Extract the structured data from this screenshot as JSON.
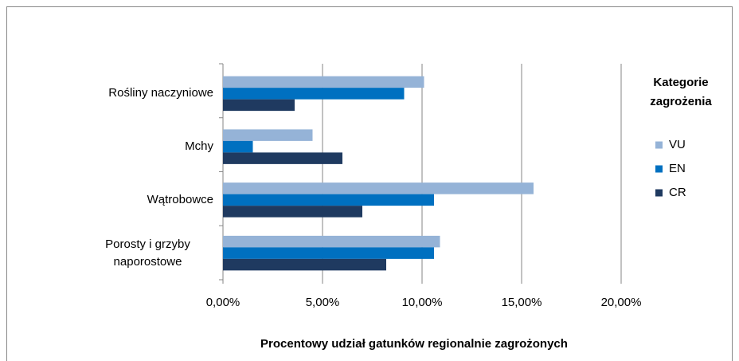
{
  "chart_data": {
    "type": "bar",
    "orientation": "horizontal",
    "categories": [
      "Rośliny naczyniowe",
      "Mchy",
      "Wątrobowce",
      "Porosty i grzyby naporostowe"
    ],
    "series": [
      {
        "name": "VU",
        "color": "#95b3d7",
        "values": [
          10.1,
          4.5,
          15.6,
          10.9
        ]
      },
      {
        "name": "EN",
        "color": "#0070c0",
        "values": [
          9.1,
          1.5,
          10.6,
          10.6
        ]
      },
      {
        "name": "CR",
        "color": "#1f3a60",
        "values": [
          3.6,
          6.0,
          7.0,
          8.2
        ]
      }
    ],
    "xlabel": "Procentowy udział gatunków regionalnie zagrożonych",
    "legend_title": "Kategorie zagrożenia",
    "xlim": [
      0,
      20
    ],
    "xticks": [
      {
        "value": 0,
        "label": "0,00%"
      },
      {
        "value": 5,
        "label": "5,00%"
      },
      {
        "value": 10,
        "label": "10,00%"
      },
      {
        "value": 15,
        "label": "15,00%"
      },
      {
        "value": 20,
        "label": "20,00%"
      }
    ],
    "grid": true,
    "legend": "right"
  }
}
